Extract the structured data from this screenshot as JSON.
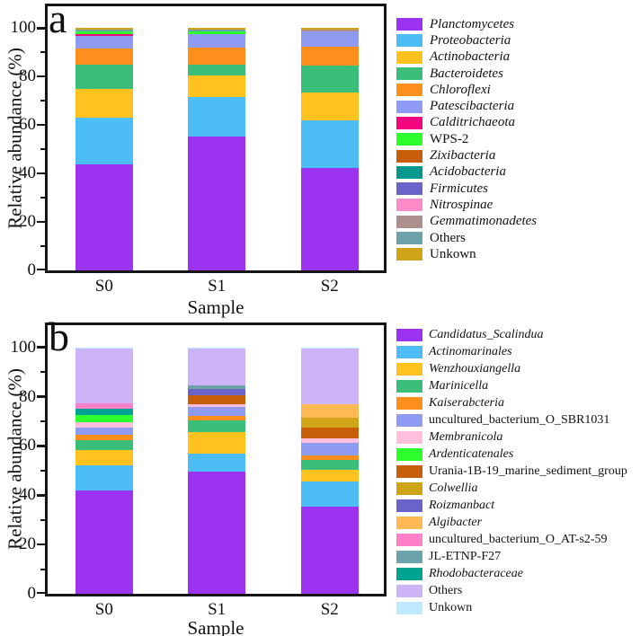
{
  "figure": {
    "background": "#ffffff",
    "axis_color": "#151515"
  },
  "chart_data": [
    {
      "type": "bar",
      "stacked": true,
      "panel_label": "a",
      "xlabel": "Sample",
      "ylabel": "Relative abundance (%)",
      "categories": [
        "S0",
        "S1",
        "S2"
      ],
      "ylim": [
        0,
        109
      ],
      "yticks": [
        0,
        20,
        40,
        60,
        80,
        100
      ],
      "yticks_minor": [
        10,
        30,
        50,
        70,
        90
      ],
      "grid": false,
      "legend_position": "right",
      "stack_order": [
        0,
        1,
        2,
        3,
        4,
        5,
        6,
        7,
        8,
        9,
        10,
        11,
        12,
        13,
        14
      ],
      "series": [
        {
          "name": "Planctomycetes",
          "color": "#9B33F0",
          "italic": true,
          "values": [
            43.8,
            55.1,
            42.3
          ]
        },
        {
          "name": "Proteobacteria",
          "color": "#4CBEF5",
          "italic": true,
          "values": [
            19.2,
            16.3,
            19.5
          ]
        },
        {
          "name": "Actinobacteria",
          "color": "#FFC21E",
          "italic": true,
          "values": [
            11.8,
            9.1,
            11.7
          ]
        },
        {
          "name": "Bacteroidetes",
          "color": "#3BBE79",
          "italic": true,
          "values": [
            10.1,
            4.3,
            11.2
          ]
        },
        {
          "name": "Chloroflexi",
          "color": "#FF8F1C",
          "italic": true,
          "values": [
            6.6,
            7.0,
            7.8
          ]
        },
        {
          "name": "Patescibacteria",
          "color": "#8F9BF2",
          "italic": true,
          "values": [
            5.2,
            5.6,
            6.3
          ]
        },
        {
          "name": "Calditrichaeota",
          "color": "#F2047E",
          "italic": true,
          "values": [
            0.9,
            0.0,
            0.0
          ]
        },
        {
          "name": "WPS-2",
          "color": "#2EFF2E",
          "italic": false,
          "values": [
            1.0,
            1.2,
            0.0
          ]
        },
        {
          "name": "Zixibacteria",
          "color": "#C75E0A",
          "italic": true,
          "values": [
            0.0,
            0.0,
            0.0
          ]
        },
        {
          "name": "Acidobacteria",
          "color": "#00978C",
          "italic": true,
          "values": [
            0.0,
            0.0,
            0.0
          ]
        },
        {
          "name": "Firmicutes",
          "color": "#6A63C9",
          "italic": true,
          "values": [
            0.0,
            0.0,
            0.0
          ]
        },
        {
          "name": "Nitrospinae",
          "color": "#FF8AC8",
          "italic": true,
          "values": [
            0.0,
            0.0,
            0.0
          ]
        },
        {
          "name": "Gemmatimonadetes",
          "color": "#AC8F8E",
          "italic": true,
          "values": [
            0.0,
            0.0,
            0.5
          ]
        },
        {
          "name": "Others",
          "color": "#6BA3A8",
          "italic": false,
          "values": [
            0.8,
            0.9,
            0.2
          ]
        },
        {
          "name": "Unkown",
          "color": "#CFA417",
          "italic": false,
          "values": [
            0.6,
            0.5,
            0.5
          ]
        }
      ]
    },
    {
      "type": "bar",
      "stacked": true,
      "panel_label": "b",
      "xlabel": "Sample",
      "ylabel": "Relative abundance (%)",
      "categories": [
        "S0",
        "S1",
        "S2"
      ],
      "ylim": [
        0,
        109
      ],
      "yticks": [
        0,
        20,
        40,
        60,
        80,
        100
      ],
      "yticks_minor": [
        10,
        30,
        50,
        70,
        90
      ],
      "grid": false,
      "legend_position": "right",
      "stack_order": [
        0,
        1,
        2,
        3,
        4,
        5,
        6,
        7,
        8,
        9,
        10,
        11,
        14,
        12,
        13,
        15,
        16
      ],
      "series": [
        {
          "name": "Candidatus_Scalindua",
          "color": "#9B33F0",
          "italic": true,
          "values": [
            42.0,
            49.7,
            35.3
          ]
        },
        {
          "name": "Actinomarinales",
          "color": "#4CBEF5",
          "italic": true,
          "values": [
            10.2,
            7.2,
            10.3
          ]
        },
        {
          "name": "Wenzhouxiangella",
          "color": "#FFC21E",
          "italic": true,
          "values": [
            6.2,
            8.6,
            4.7
          ]
        },
        {
          "name": "Marinicella",
          "color": "#3BBE79",
          "italic": true,
          "values": [
            4.0,
            4.8,
            4.1
          ]
        },
        {
          "name": "Kaiserabcteria",
          "color": "#FF8F1C",
          "italic": true,
          "values": [
            2.2,
            1.8,
            1.9
          ]
        },
        {
          "name": "uncultured_bacterium_O_SBR1031",
          "color": "#8F9BF2",
          "italic": false,
          "values": [
            3.0,
            3.9,
            5.0
          ]
        },
        {
          "name": "Membranicola",
          "color": "#FFBEDC",
          "italic": true,
          "values": [
            2.2,
            0.8,
            1.8
          ]
        },
        {
          "name": "Ardenticatenales",
          "color": "#2EFF2E",
          "italic": true,
          "values": [
            2.8,
            0.0,
            0.0
          ]
        },
        {
          "name": "Urania-1B-19_marine_sediment_group",
          "color": "#C75E0A",
          "italic": false,
          "values": [
            0.0,
            3.9,
            4.4
          ]
        },
        {
          "name": "Colwellia",
          "color": "#CFA417",
          "italic": true,
          "values": [
            0.0,
            0.0,
            3.9
          ]
        },
        {
          "name": "Roizmanbact",
          "color": "#6A63C9",
          "italic": true,
          "values": [
            0.0,
            2.5,
            0.0
          ]
        },
        {
          "name": "Algibacter",
          "color": "#FFB954",
          "italic": true,
          "values": [
            0.0,
            0.0,
            5.7
          ]
        },
        {
          "name": "uncultured_bacterium_O_AT-s2-59",
          "color": "#FF80C8",
          "italic": false,
          "values": [
            2.2,
            0.0,
            0.0
          ]
        },
        {
          "name": "JL-ETNP-F27",
          "color": "#6BA3A8",
          "italic": false,
          "values": [
            0.0,
            1.5,
            0.0
          ]
        },
        {
          "name": "Rhodobacteraceae",
          "color": "#00A38F",
          "italic": true,
          "values": [
            2.6,
            0.0,
            0.0
          ]
        },
        {
          "name": "Others",
          "color": "#CDB4F7",
          "italic": false,
          "values": [
            22.1,
            14.8,
            22.5
          ]
        },
        {
          "name": "Unkown",
          "color": "#BFE9FF",
          "italic": false,
          "values": [
            0.5,
            0.5,
            0.4
          ]
        }
      ]
    }
  ]
}
